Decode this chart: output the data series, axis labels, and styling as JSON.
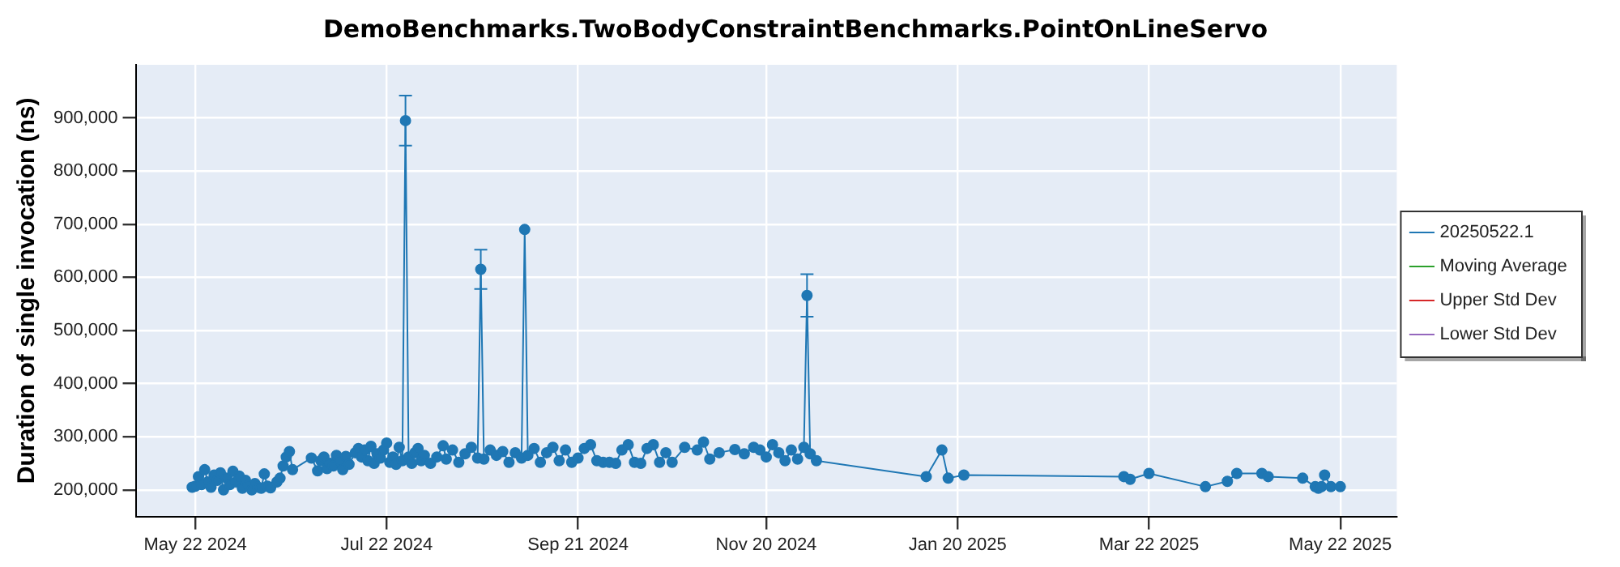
{
  "chart_data": {
    "type": "line",
    "title": "DemoBenchmarks.TwoBodyConstraintBenchmarks.PointOnLineServo",
    "ylabel": "Duration of single invocation (ns)",
    "x": [
      "2024-05-21",
      "2024-05-22",
      "2024-05-23",
      "2024-05-24",
      "2024-05-25",
      "2024-05-26",
      "2024-05-27",
      "2024-05-28",
      "2024-05-29",
      "2024-05-30",
      "2024-05-31",
      "2024-06-01",
      "2024-06-02",
      "2024-06-03",
      "2024-06-04",
      "2024-06-05",
      "2024-06-06",
      "2024-06-07",
      "2024-06-08",
      "2024-06-09",
      "2024-06-10",
      "2024-06-11",
      "2024-06-12",
      "2024-06-13",
      "2024-06-14",
      "2024-06-15",
      "2024-06-17",
      "2024-06-18",
      "2024-06-19",
      "2024-06-20",
      "2024-06-21",
      "2024-06-22",
      "2024-06-28",
      "2024-06-30",
      "2024-07-01",
      "2024-07-02",
      "2024-07-03",
      "2024-07-04",
      "2024-07-05",
      "2024-07-06",
      "2024-07-07",
      "2024-07-08",
      "2024-07-09",
      "2024-07-10",
      "2024-07-12",
      "2024-07-13",
      "2024-07-14",
      "2024-07-15",
      "2024-07-16",
      "2024-07-17",
      "2024-07-18",
      "2024-07-19",
      "2024-07-20",
      "2024-07-21",
      "2024-07-22",
      "2024-07-23",
      "2024-07-24",
      "2024-07-25",
      "2024-07-26",
      "2024-07-27",
      "2024-07-28",
      "2024-07-29",
      "2024-07-30",
      "2024-07-31",
      "2024-08-01",
      "2024-08-02",
      "2024-08-03",
      "2024-08-05",
      "2024-08-07",
      "2024-08-09",
      "2024-08-10",
      "2024-08-12",
      "2024-08-14",
      "2024-08-16",
      "2024-08-18",
      "2024-08-20",
      "2024-08-21",
      "2024-08-22",
      "2024-08-24",
      "2024-08-26",
      "2024-08-28",
      "2024-08-30",
      "2024-09-01",
      "2024-09-03",
      "2024-09-04",
      "2024-09-05",
      "2024-09-07",
      "2024-09-09",
      "2024-09-11",
      "2024-09-13",
      "2024-09-15",
      "2024-09-17",
      "2024-09-19",
      "2024-09-21",
      "2024-09-23",
      "2024-09-25",
      "2024-09-27",
      "2024-09-29",
      "2024-10-01",
      "2024-10-03",
      "2024-10-05",
      "2024-10-07",
      "2024-10-09",
      "2024-10-11",
      "2024-10-13",
      "2024-10-15",
      "2024-10-17",
      "2024-10-19",
      "2024-10-21",
      "2024-10-25",
      "2024-10-29",
      "2024-10-31",
      "2024-11-02",
      "2024-11-05",
      "2024-11-10",
      "2024-11-13",
      "2024-11-16",
      "2024-11-18",
      "2024-11-20",
      "2024-11-22",
      "2024-11-24",
      "2024-11-26",
      "2024-11-28",
      "2024-11-30",
      "2024-12-02",
      "2024-12-03",
      "2024-12-04",
      "2024-12-06",
      "2025-01-10",
      "2025-01-15",
      "2025-01-17",
      "2025-01-22",
      "2025-03-14",
      "2025-03-16",
      "2025-03-22",
      "2025-04-09",
      "2025-04-16",
      "2025-04-19",
      "2025-04-27",
      "2025-04-29",
      "2025-05-10",
      "2025-05-14",
      "2025-05-15",
      "2025-05-16",
      "2025-05-17",
      "2025-05-19",
      "2025-05-22"
    ],
    "series": [
      {
        "name": "20250522.1",
        "color": "#1f77b4",
        "values": [
          205000,
          207000,
          225000,
          210000,
          238000,
          215000,
          205000,
          228000,
          218000,
          232000,
          200000,
          222000,
          210000,
          235000,
          215000,
          226000,
          203000,
          218000,
          208000,
          200000,
          212000,
          205000,
          203000,
          230000,
          207000,
          204000,
          215000,
          222000,
          245000,
          262000,
          272000,
          238000,
          260000,
          236000,
          255000,
          262000,
          240000,
          250000,
          245000,
          265000,
          255000,
          238000,
          263000,
          248000,
          270000,
          278000,
          262000,
          275000,
          255000,
          282000,
          250000,
          268000,
          260000,
          275000,
          288000,
          252000,
          262000,
          248000,
          280000,
          255000,
          895000,
          262000,
          250000,
          270000,
          278000,
          255000,
          265000,
          250000,
          262000,
          283000,
          258000,
          275000,
          252000,
          268000,
          280000,
          260000,
          615000,
          258000,
          275000,
          265000,
          272000,
          252000,
          270000,
          260000,
          690000,
          265000,
          278000,
          252000,
          270000,
          280000,
          255000,
          275000,
          252000,
          260000,
          278000,
          285000,
          255000,
          252000,
          252000,
          250000,
          275000,
          285000,
          252000,
          250000,
          278000,
          285000,
          252000,
          270000,
          252000,
          280000,
          275000,
          290000,
          258000,
          270000,
          276000,
          268000,
          280000,
          275000,
          262000,
          285000,
          270000,
          255000,
          275000,
          258000,
          280000,
          566000,
          268000,
          255000,
          225000,
          275000,
          222000,
          228000,
          225000,
          220000,
          231000,
          206000,
          216000,
          231000,
          231000,
          225000,
          222000,
          206000,
          203000,
          206000,
          228000,
          206000,
          206000
        ],
        "errors": [
          null,
          null,
          null,
          null,
          null,
          null,
          null,
          null,
          null,
          null,
          null,
          null,
          null,
          null,
          null,
          null,
          null,
          null,
          null,
          null,
          null,
          null,
          null,
          null,
          null,
          null,
          null,
          null,
          null,
          null,
          null,
          null,
          null,
          null,
          null,
          null,
          null,
          null,
          null,
          null,
          null,
          null,
          null,
          null,
          null,
          null,
          null,
          null,
          null,
          null,
          null,
          null,
          null,
          null,
          null,
          null,
          null,
          null,
          null,
          null,
          47000,
          null,
          null,
          null,
          null,
          null,
          null,
          null,
          null,
          null,
          null,
          null,
          null,
          null,
          null,
          null,
          37000,
          null,
          null,
          null,
          null,
          null,
          null,
          null,
          null,
          null,
          null,
          null,
          null,
          null,
          null,
          null,
          null,
          null,
          null,
          null,
          null,
          null,
          null,
          null,
          null,
          null,
          null,
          null,
          null,
          null,
          null,
          null,
          null,
          null,
          null,
          null,
          null,
          null,
          null,
          null,
          null,
          null,
          null,
          null,
          null,
          null,
          null,
          null,
          null,
          40000,
          null,
          null,
          null,
          null,
          null,
          null,
          null,
          null,
          null,
          null,
          null,
          null,
          null,
          null,
          null,
          null,
          null,
          null,
          null,
          null,
          null
        ]
      },
      {
        "name": "Moving Average",
        "color": "#2ca02c",
        "values": [
          null,
          null,
          null,
          null,
          null,
          null,
          null,
          null,
          null,
          null,
          null,
          null,
          null,
          null,
          null,
          null,
          null,
          null,
          null,
          null,
          null,
          null,
          null,
          null,
          null,
          null,
          null,
          null,
          null,
          null,
          null,
          null,
          null,
          null,
          null,
          null,
          null,
          null,
          null,
          null,
          null,
          null,
          null,
          null,
          null,
          null,
          null,
          null,
          null,
          null,
          null,
          null,
          null,
          null,
          null,
          null,
          null,
          null,
          null,
          null,
          null,
          null,
          null,
          null,
          null,
          null,
          null,
          null,
          null,
          null,
          null,
          null,
          null,
          null,
          null,
          null,
          null,
          null,
          null,
          null,
          null,
          null,
          null,
          null,
          null,
          null,
          null,
          null,
          null,
          null,
          null,
          null,
          null,
          null,
          null,
          null,
          null,
          null,
          null,
          null,
          null,
          null,
          null,
          null,
          null,
          null,
          null,
          null,
          null,
          null,
          null,
          null,
          null,
          null,
          null,
          null,
          null,
          null,
          null,
          null,
          null,
          null,
          null,
          null,
          null,
          null,
          null,
          null,
          null,
          null,
          null,
          null,
          null,
          null,
          null,
          null,
          null,
          null,
          null,
          null,
          null,
          null,
          null,
          null,
          null,
          null,
          null
        ]
      },
      {
        "name": "Upper Std Dev",
        "color": "#d62728",
        "values": [
          null,
          null,
          null,
          null,
          null,
          null,
          null,
          null,
          null,
          null,
          null,
          null,
          null,
          null,
          null,
          null,
          null,
          null,
          null,
          null,
          null,
          null,
          null,
          null,
          null,
          null,
          null,
          null,
          null,
          null,
          null,
          null,
          null,
          null,
          null,
          null,
          null,
          null,
          null,
          null,
          null,
          null,
          null,
          null,
          null,
          null,
          null,
          null,
          null,
          null,
          null,
          null,
          null,
          null,
          null,
          null,
          null,
          null,
          null,
          null,
          null,
          null,
          null,
          null,
          null,
          null,
          null,
          null,
          null,
          null,
          null,
          null,
          null,
          null,
          null,
          null,
          null,
          null,
          null,
          null,
          null,
          null,
          null,
          null,
          null,
          null,
          null,
          null,
          null,
          null,
          null,
          null,
          null,
          null,
          null,
          null,
          null,
          null,
          null,
          null,
          null,
          null,
          null,
          null,
          null,
          null,
          null,
          null,
          null,
          null,
          null,
          null,
          null,
          null,
          null,
          null,
          null,
          null,
          null,
          null,
          null,
          null,
          null,
          null,
          null,
          null,
          null,
          null,
          null,
          null,
          null,
          null,
          null,
          null,
          null,
          null,
          null,
          null,
          null,
          null,
          null,
          null,
          null,
          null,
          null,
          null,
          null
        ]
      },
      {
        "name": "Lower Std Dev",
        "color": "#9467bd",
        "values": [
          null,
          null,
          null,
          null,
          null,
          null,
          null,
          null,
          null,
          null,
          null,
          null,
          null,
          null,
          null,
          null,
          null,
          null,
          null,
          null,
          null,
          null,
          null,
          null,
          null,
          null,
          null,
          null,
          null,
          null,
          null,
          null,
          null,
          null,
          null,
          null,
          null,
          null,
          null,
          null,
          null,
          null,
          null,
          null,
          null,
          null,
          null,
          null,
          null,
          null,
          null,
          null,
          null,
          null,
          null,
          null,
          null,
          null,
          null,
          null,
          null,
          null,
          null,
          null,
          null,
          null,
          null,
          null,
          null,
          null,
          null,
          null,
          null,
          null,
          null,
          null,
          null,
          null,
          null,
          null,
          null,
          null,
          null,
          null,
          null,
          null,
          null,
          null,
          null,
          null,
          null,
          null,
          null,
          null,
          null,
          null,
          null,
          null,
          null,
          null,
          null,
          null,
          null,
          null,
          null,
          null,
          null,
          null,
          null,
          null,
          null,
          null,
          null,
          null,
          null,
          null,
          null,
          null,
          null,
          null,
          null,
          null,
          null,
          null,
          null,
          null,
          null,
          null,
          null,
          null,
          null,
          null,
          null,
          null,
          null,
          null,
          null,
          null,
          null,
          null,
          null,
          null,
          null,
          null,
          null,
          null,
          null
        ]
      }
    ],
    "xlim": [
      "2024-05-03",
      "2025-06-09"
    ],
    "xticks": [
      {
        "value": "2024-05-22",
        "label": "May 22 2024"
      },
      {
        "value": "2024-07-22",
        "label": "Jul 22 2024"
      },
      {
        "value": "2024-09-21",
        "label": "Sep 21 2024"
      },
      {
        "value": "2024-11-20",
        "label": "Nov 20 2024"
      },
      {
        "value": "2025-01-20",
        "label": "Jan 20 2025"
      },
      {
        "value": "2025-03-22",
        "label": "Mar 22 2025"
      },
      {
        "value": "2025-05-22",
        "label": "May 22 2025"
      }
    ],
    "ylim": [
      150000,
      1000000
    ],
    "yticks": [
      {
        "value": 200000,
        "label": "200,000"
      },
      {
        "value": 300000,
        "label": "300,000"
      },
      {
        "value": 400000,
        "label": "400,000"
      },
      {
        "value": 500000,
        "label": "500,000"
      },
      {
        "value": 600000,
        "label": "600,000"
      },
      {
        "value": 700000,
        "label": "700,000"
      },
      {
        "value": 800000,
        "label": "800,000"
      },
      {
        "value": 900000,
        "label": "900,000"
      }
    ],
    "grid": true,
    "legend": "right",
    "marker": "circle",
    "line_style": "solid"
  }
}
